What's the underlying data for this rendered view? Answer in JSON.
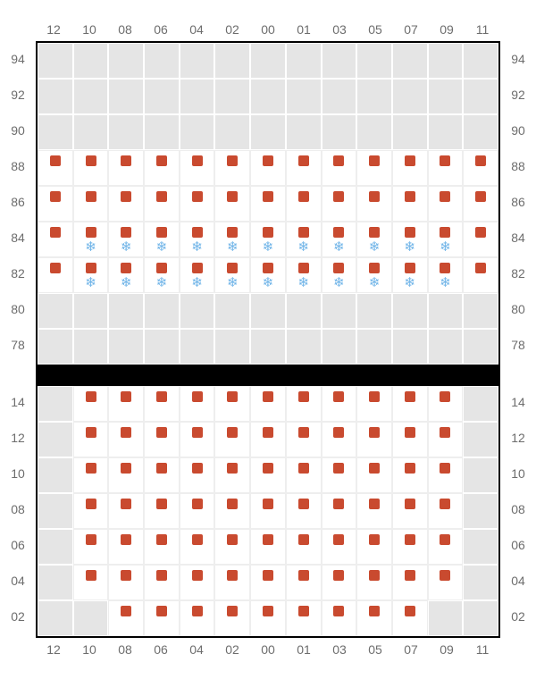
{
  "layout": {
    "columns": [
      "12",
      "10",
      "08",
      "06",
      "04",
      "02",
      "00",
      "01",
      "03",
      "05",
      "07",
      "09",
      "11"
    ],
    "cell_size": 40,
    "colors": {
      "seat": "#c94a2f",
      "snow": "#6fb4e8",
      "grid_bg": "#e5e5e5",
      "active_bg": "#ffffff",
      "grid_line": "#ffffff",
      "border": "#000000",
      "label": "#6d6d6d"
    }
  },
  "sections": [
    {
      "id": "upper",
      "axis_top": true,
      "axis_bottom": false,
      "rows": [
        {
          "label": "94",
          "cells": [
            0,
            0,
            0,
            0,
            0,
            0,
            0,
            0,
            0,
            0,
            0,
            0,
            0
          ]
        },
        {
          "label": "92",
          "cells": [
            0,
            0,
            0,
            0,
            0,
            0,
            0,
            0,
            0,
            0,
            0,
            0,
            0
          ]
        },
        {
          "label": "90",
          "cells": [
            0,
            0,
            0,
            0,
            0,
            0,
            0,
            0,
            0,
            0,
            0,
            0,
            0
          ]
        },
        {
          "label": "88",
          "cells": [
            1,
            1,
            1,
            1,
            1,
            1,
            1,
            1,
            1,
            1,
            1,
            1,
            1
          ]
        },
        {
          "label": "86",
          "cells": [
            1,
            1,
            1,
            1,
            1,
            1,
            1,
            1,
            1,
            1,
            1,
            1,
            1
          ]
        },
        {
          "label": "84",
          "cells": [
            1,
            2,
            2,
            2,
            2,
            2,
            2,
            2,
            2,
            2,
            2,
            2,
            1
          ]
        },
        {
          "label": "82",
          "cells": [
            1,
            2,
            2,
            2,
            2,
            2,
            2,
            2,
            2,
            2,
            2,
            2,
            1
          ]
        },
        {
          "label": "80",
          "cells": [
            0,
            0,
            0,
            0,
            0,
            0,
            0,
            0,
            0,
            0,
            0,
            0,
            0
          ]
        },
        {
          "label": "78",
          "cells": [
            0,
            0,
            0,
            0,
            0,
            0,
            0,
            0,
            0,
            0,
            0,
            0,
            0
          ]
        }
      ]
    },
    {
      "id": "lower",
      "axis_top": false,
      "axis_bottom": true,
      "rows": [
        {
          "label": "14",
          "cells": [
            0,
            1,
            1,
            1,
            1,
            1,
            1,
            1,
            1,
            1,
            1,
            1,
            0
          ]
        },
        {
          "label": "12",
          "cells": [
            0,
            1,
            1,
            1,
            1,
            1,
            1,
            1,
            1,
            1,
            1,
            1,
            0
          ]
        },
        {
          "label": "10",
          "cells": [
            0,
            1,
            1,
            1,
            1,
            1,
            1,
            1,
            1,
            1,
            1,
            1,
            0
          ]
        },
        {
          "label": "08",
          "cells": [
            0,
            1,
            1,
            1,
            1,
            1,
            1,
            1,
            1,
            1,
            1,
            1,
            0
          ]
        },
        {
          "label": "06",
          "cells": [
            0,
            1,
            1,
            1,
            1,
            1,
            1,
            1,
            1,
            1,
            1,
            1,
            0
          ]
        },
        {
          "label": "04",
          "cells": [
            0,
            1,
            1,
            1,
            1,
            1,
            1,
            1,
            1,
            1,
            1,
            1,
            0
          ]
        },
        {
          "label": "02",
          "cells": [
            0,
            0,
            1,
            1,
            1,
            1,
            1,
            1,
            1,
            1,
            1,
            0,
            0
          ]
        }
      ]
    }
  ]
}
